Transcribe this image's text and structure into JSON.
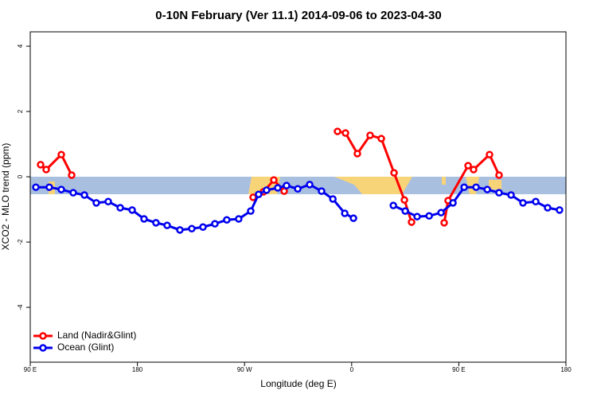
{
  "chart_data": {
    "type": "line",
    "title": "0-10N February (Ver 11.1)   2014-09-06 to 2023-04-30",
    "xlabel": "Longitude (deg E)",
    "ylabel": "XCO2 - MLO trend (ppm)",
    "xlim": [
      90,
      540
    ],
    "xticks": [
      {
        "value": 90,
        "label": "90 E"
      },
      {
        "value": 180,
        "label": "180"
      },
      {
        "value": 270,
        "label": "90 W"
      },
      {
        "value": 360,
        "label": "0"
      },
      {
        "value": 450,
        "label": "90 E"
      },
      {
        "value": 540,
        "label": "180"
      }
    ],
    "ylim": [
      -5.68,
      4.44
    ],
    "yticks": [
      -4,
      -2,
      0,
      2,
      4
    ],
    "legend": "lower left",
    "series": [
      {
        "name": "Land (Nadir&Glint)",
        "color": "#ff0000",
        "x": [
          98.7,
          103.4,
          116.1,
          124.8,
          null,
          277.2,
          285.9,
          294.6,
          303.3,
          null,
          348.1,
          354.8,
          364.8,
          375.5,
          384.9,
          395.6,
          404.3,
          410.3,
          null,
          437.7,
          441.0,
          457.8,
          462.4,
          475.8,
          483.8
        ],
        "values": [
          0.37,
          0.22,
          0.68,
          0.05,
          null,
          -0.63,
          -0.46,
          -0.1,
          -0.44,
          null,
          1.39,
          1.34,
          0.71,
          1.27,
          1.17,
          0.12,
          -0.71,
          -1.39,
          null,
          -1.41,
          -0.73,
          0.34,
          0.22,
          0.68,
          0.05
        ]
      },
      {
        "name": "Ocean (Glint)",
        "color": "#0000ee",
        "x": [
          94.7,
          106.0,
          116.1,
          126.1,
          135.5,
          145.5,
          155.5,
          165.6,
          175.6,
          185.6,
          195.6,
          205.0,
          215.7,
          225.7,
          235.1,
          245.1,
          255.1,
          265.1,
          275.2,
          281.8,
          288.5,
          297.9,
          305.3,
          314.7,
          324.7,
          334.7,
          344.2,
          354.2,
          361.5,
          null,
          395.0,
          405.0,
          415.0,
          425.1,
          435.1,
          445.1,
          454.5,
          464.5,
          473.9,
          483.8,
          493.9,
          503.9,
          514.6,
          524.6,
          534.6
        ],
        "values": [
          -0.32,
          -0.32,
          -0.39,
          -0.49,
          -0.56,
          -0.8,
          -0.76,
          -0.95,
          -1.02,
          -1.29,
          -1.41,
          -1.49,
          -1.63,
          -1.59,
          -1.54,
          -1.44,
          -1.32,
          -1.29,
          -1.05,
          -0.54,
          -0.41,
          -0.34,
          -0.27,
          -0.37,
          -0.24,
          -0.44,
          -0.68,
          -1.12,
          -1.27,
          null,
          -0.88,
          -1.05,
          -1.22,
          -1.2,
          -1.1,
          -0.8,
          -0.32,
          -0.32,
          -0.39,
          -0.49,
          -0.56,
          -0.8,
          -0.76,
          -0.95,
          -1.02
        ]
      }
    ]
  }
}
